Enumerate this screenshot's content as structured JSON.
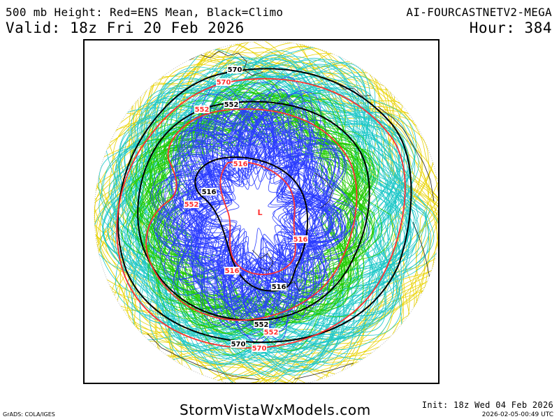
{
  "header": {
    "title": "500 mb Height: Red=ENS Mean, Black=Climo",
    "model": "AI-FOURCASTNETV2-MEGA",
    "valid": "Valid: 18z Fri 20 Feb 2026",
    "hour": "Hour: 384"
  },
  "map": {
    "projection": "north-polar-stereographic",
    "member_colors": {
      "outer": "#e8d200",
      "mid": "#1ec8c8",
      "inner": "#22cc00",
      "core": "#2a3cff"
    },
    "mean_color": "#ff3030",
    "climo_color": "#000000",
    "contour_labels": {
      "climo_570_top": "570",
      "mean_570_top": "570",
      "climo_552_top": "552",
      "mean_552_topleft": "552",
      "climo_516_left": "516",
      "mean_516_top": "516",
      "mean_552_left": "552",
      "mean_516_right": "516",
      "mean_516_bottom": "516",
      "climo_516_bottom": "516",
      "climo_552_bottom": "552",
      "mean_552_bottom": "552",
      "climo_570_bottom": "570",
      "mean_570_bottom": "570",
      "low_center": "L"
    }
  },
  "footer": {
    "grads": "GrADS: COLA/IGES",
    "site": "StormVistaWxModels.com",
    "init": "Init: 18z Wed 04 Feb 2026",
    "stamp": "2026-02-05-00:49 UTC"
  }
}
